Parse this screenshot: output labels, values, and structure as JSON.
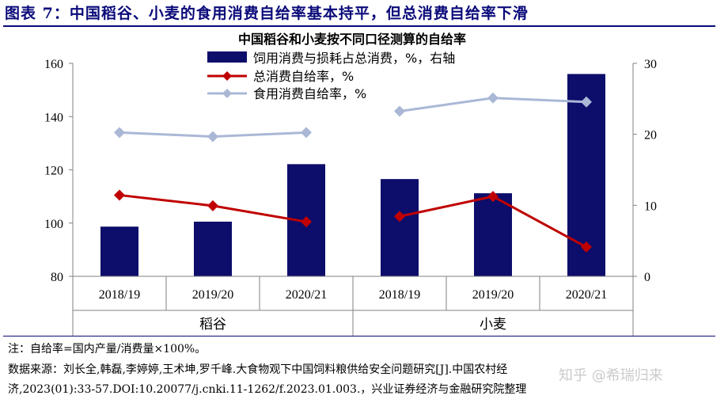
{
  "figure": {
    "title": "图表 7：中国稻谷、小麦的食用消费自给率基本持平，但总消费自给率下滑"
  },
  "chart_data": {
    "type": "bar+line",
    "title": "中国稻谷和小麦按不同口径测算的自给率",
    "groups": [
      {
        "name": "稻谷",
        "categories": [
          "2018/19",
          "2019/20",
          "2020/21"
        ]
      },
      {
        "name": "小麦",
        "categories": [
          "2018/19",
          "2019/20",
          "2020/21"
        ]
      }
    ],
    "left_axis": {
      "min": 80,
      "max": 160,
      "ticks": [
        80,
        100,
        120,
        140,
        160
      ]
    },
    "right_axis": {
      "min": 0,
      "max": 30,
      "ticks": [
        0,
        10,
        20,
        30
      ]
    },
    "series": [
      {
        "name": "饲用消费与损耗占总消费，%，右轴",
        "kind": "bar",
        "axis": "right",
        "color": "#0d0d6b",
        "values": [
          7.0,
          7.7,
          15.8,
          13.7,
          11.7,
          28.5
        ]
      },
      {
        "name": "总消费自给率，%",
        "kind": "line",
        "axis": "left",
        "color": "#c00000",
        "values": [
          110.5,
          106.5,
          100.5,
          102.5,
          110.0,
          91.0
        ]
      },
      {
        "name": "食用消费自给率，%",
        "kind": "line",
        "axis": "left",
        "color": "#aab8d6",
        "values": [
          134.0,
          132.5,
          134.0,
          142.0,
          147.0,
          145.5
        ]
      }
    ],
    "legend_position": "top-center",
    "grid": false
  },
  "notes": {
    "line1": "注：自给率=国内产量/消费量×100%。",
    "line2": "数据来源：刘长全,韩磊,李婷婷,王术坤,罗千峰.大食物观下中国饲料粮供给安全问题研究[J].中国农村经",
    "line3": "济,2023(01):33-57.DOI:10.20077/j.cnki.11-1262/f.2023.01.003.，兴业证券经济与金融研究院整理"
  },
  "watermark": "知乎 @希瑞归来"
}
